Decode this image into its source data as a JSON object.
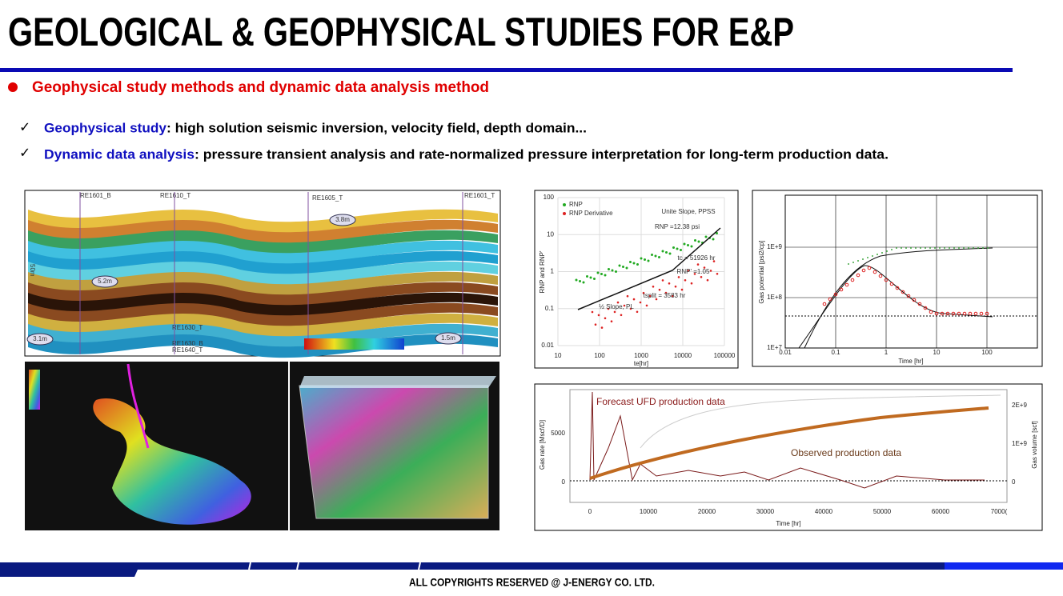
{
  "header": {
    "title": "GEOLOGICAL & GEOPHYSICAL STUDIES FOR E&P"
  },
  "section": {
    "heading": "Geophysical study methods and dynamic data analysis method",
    "items": [
      {
        "label": "Geophysical study",
        "text": ": high solution seismic inversion, velocity field, depth domain..."
      },
      {
        "label": "Dynamic data analysis",
        "text": ": pressure transient analysis and rate-normalized pressure interpretation for long-term production data."
      }
    ]
  },
  "figures": {
    "seismic": {
      "wells": [
        "RE1601_B",
        "RE1610_T",
        "RE1605_T",
        "RE1601_T",
        "RE1630_T",
        "RE1630_B",
        "RE1640_T"
      ],
      "thickness_labels": [
        "3.8m",
        "5.2m",
        "3.1m",
        "1.5m"
      ],
      "scale_label": "50m"
    },
    "rnp": {
      "legend": [
        "RNP",
        "RNP Derivative"
      ],
      "y_label": "RNP and RNP'",
      "x_label": "te[hr]",
      "yticks": [
        "100",
        "10",
        "1",
        "0.1",
        "0.01"
      ],
      "xticks": [
        "10",
        "100",
        "1000",
        "10000",
        "100000"
      ],
      "annotations": [
        "Unite Slope, PPSS",
        "RNP =12.38 psi",
        "tc = 51926 hr",
        "RNP' =1.05",
        "tsplit = 3583 hr",
        "½ Slope, PL"
      ]
    },
    "gas_potential": {
      "y_label": "Gas potential [psi2/cp]",
      "x_label": "Time [hr]",
      "yticks": [
        "1E+9",
        "1E+8",
        "1E+7"
      ],
      "xticks": [
        "0.01",
        "0.1",
        "1",
        "10",
        "100"
      ]
    },
    "production": {
      "y_label": "Gas rate [Mscf/D]",
      "y2_label": "Gas volume [scf]",
      "x_label": "Time [hr]",
      "yticks": [
        "5000",
        "0"
      ],
      "y2ticks": [
        "2E+9",
        "1E+9",
        "0"
      ],
      "xticks": [
        "0",
        "10000",
        "20000",
        "30000",
        "40000",
        "50000",
        "60000",
        "7000("
      ],
      "annotations": [
        "Forecast UFD production data",
        "Observed production data"
      ]
    }
  },
  "footer": {
    "copyright": "ALL COPYRIGHTS RESERVED @ J-ENERGY CO. LTD."
  }
}
